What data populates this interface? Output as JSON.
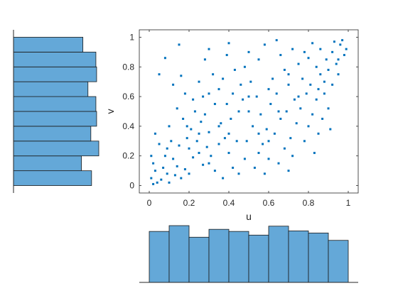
{
  "chart_data": [
    {
      "type": "scatter",
      "id": "main",
      "xlabel": "u",
      "ylabel": "v",
      "xlim": [
        -0.05,
        1.05
      ],
      "ylim": [
        -0.05,
        1.05
      ],
      "xticks": [
        0,
        0.2,
        0.4,
        0.6,
        0.8,
        1
      ],
      "yticks": [
        0,
        0.2,
        0.4,
        0.6,
        0.8,
        1
      ],
      "xtick_labels": [
        "0",
        "0.2",
        "0.4",
        "0.6",
        "0.8",
        "1"
      ],
      "ytick_labels": [
        "0",
        "0.2",
        "0.4",
        "0.6",
        "0.8",
        "1"
      ],
      "grid": false,
      "marker_color": "#0072BD",
      "points": [
        [
          0.06,
          0.04
        ],
        [
          0.02,
          0.01
        ],
        [
          0.01,
          0.05
        ],
        [
          0.09,
          0.08
        ],
        [
          0.1,
          0.02
        ],
        [
          0.03,
          0.1
        ],
        [
          0.04,
          0.02
        ],
        [
          0.13,
          0.07
        ],
        [
          0.07,
          0.12
        ],
        [
          0.14,
          0.13
        ],
        [
          0.02,
          0.15
        ],
        [
          0.16,
          0.05
        ],
        [
          0.12,
          0.18
        ],
        [
          0.18,
          0.11
        ],
        [
          0.2,
          0.08
        ],
        [
          0.08,
          0.2
        ],
        [
          0.22,
          0.19
        ],
        [
          0.05,
          0.28
        ],
        [
          0.11,
          0.3
        ],
        [
          0.03,
          0.35
        ],
        [
          0.15,
          0.27
        ],
        [
          0.19,
          0.32
        ],
        [
          0.25,
          0.22
        ],
        [
          0.27,
          0.14
        ],
        [
          0.24,
          0.3
        ],
        [
          0.29,
          0.26
        ],
        [
          0.1,
          0.4
        ],
        [
          0.17,
          0.45
        ],
        [
          0.21,
          0.38
        ],
        [
          0.26,
          0.43
        ],
        [
          0.14,
          0.52
        ],
        [
          0.23,
          0.5
        ],
        [
          0.3,
          0.36
        ],
        [
          0.31,
          0.2
        ],
        [
          0.33,
          0.1
        ],
        [
          0.35,
          0.28
        ],
        [
          0.28,
          0.48
        ],
        [
          0.22,
          0.58
        ],
        [
          0.18,
          0.62
        ],
        [
          0.12,
          0.68
        ],
        [
          0.16,
          0.74
        ],
        [
          0.15,
          0.95
        ],
        [
          0.08,
          0.86
        ],
        [
          0.05,
          0.75
        ],
        [
          0.25,
          0.7
        ],
        [
          0.3,
          0.62
        ],
        [
          0.33,
          0.55
        ],
        [
          0.36,
          0.42
        ],
        [
          0.38,
          0.32
        ],
        [
          0.4,
          0.22
        ],
        [
          0.42,
          0.12
        ],
        [
          0.37,
          0.05
        ],
        [
          0.45,
          0.08
        ],
        [
          0.48,
          0.18
        ],
        [
          0.44,
          0.3
        ],
        [
          0.41,
          0.45
        ],
        [
          0.39,
          0.55
        ],
        [
          0.35,
          0.65
        ],
        [
          0.32,
          0.75
        ],
        [
          0.28,
          0.85
        ],
        [
          0.3,
          0.92
        ],
        [
          0.4,
          0.96
        ],
        [
          0.39,
          0.88
        ],
        [
          0.43,
          0.78
        ],
        [
          0.46,
          0.68
        ],
        [
          0.47,
          0.58
        ],
        [
          0.5,
          0.5
        ],
        [
          0.52,
          0.4
        ],
        [
          0.49,
          0.3
        ],
        [
          0.55,
          0.22
        ],
        [
          0.53,
          0.12
        ],
        [
          0.58,
          0.08
        ],
        [
          0.6,
          0.18
        ],
        [
          0.57,
          0.28
        ],
        [
          0.59,
          0.38
        ],
        [
          0.56,
          0.48
        ],
        [
          0.54,
          0.6
        ],
        [
          0.51,
          0.7
        ],
        [
          0.48,
          0.8
        ],
        [
          0.5,
          0.9
        ],
        [
          0.55,
          0.85
        ],
        [
          0.58,
          0.95
        ],
        [
          0.62,
          0.72
        ],
        [
          0.64,
          0.62
        ],
        [
          0.61,
          0.55
        ],
        [
          0.66,
          0.45
        ],
        [
          0.63,
          0.35
        ],
        [
          0.68,
          0.25
        ],
        [
          0.65,
          0.15
        ],
        [
          0.7,
          0.1
        ],
        [
          0.72,
          0.2
        ],
        [
          0.71,
          0.32
        ],
        [
          0.74,
          0.42
        ],
        [
          0.69,
          0.5
        ],
        [
          0.73,
          0.58
        ],
        [
          0.7,
          0.68
        ],
        [
          0.68,
          0.78
        ],
        [
          0.66,
          0.88
        ],
        [
          0.64,
          0.98
        ],
        [
          0.72,
          0.92
        ],
        [
          0.75,
          0.82
        ],
        [
          0.77,
          0.72
        ],
        [
          0.79,
          0.62
        ],
        [
          0.76,
          0.52
        ],
        [
          0.8,
          0.4
        ],
        [
          0.78,
          0.3
        ],
        [
          0.83,
          0.22
        ],
        [
          0.85,
          0.35
        ],
        [
          0.82,
          0.48
        ],
        [
          0.84,
          0.58
        ],
        [
          0.81,
          0.68
        ],
        [
          0.86,
          0.75
        ],
        [
          0.88,
          0.62
        ],
        [
          0.9,
          0.52
        ],
        [
          0.87,
          0.45
        ],
        [
          0.91,
          0.38
        ],
        [
          0.89,
          0.85
        ],
        [
          0.92,
          0.9
        ],
        [
          0.94,
          0.82
        ],
        [
          0.96,
          0.95
        ],
        [
          0.98,
          0.88
        ],
        [
          0.95,
          0.75
        ],
        [
          0.97,
          0.98
        ],
        [
          0.99,
          0.92
        ],
        [
          0.93,
          0.97
        ],
        [
          0.9,
          0.78
        ],
        [
          0.86,
          0.92
        ],
        [
          0.84,
          0.8
        ],
        [
          0.8,
          0.86
        ],
        [
          0.78,
          0.9
        ],
        [
          0.82,
          0.96
        ],
        [
          0.88,
          0.7
        ],
        [
          0.92,
          0.68
        ],
        [
          0.95,
          0.85
        ],
        [
          0.6,
          0.3
        ],
        [
          0.45,
          0.5
        ],
        [
          0.35,
          0.4
        ],
        [
          0.25,
          0.35
        ],
        [
          0.2,
          0.25
        ],
        [
          0.3,
          0.15
        ],
        [
          0.4,
          0.35
        ],
        [
          0.5,
          0.6
        ],
        [
          0.6,
          0.65
        ],
        [
          0.7,
          0.75
        ],
        [
          0.55,
          0.35
        ],
        [
          0.65,
          0.5
        ],
        [
          0.75,
          0.6
        ],
        [
          0.85,
          0.65
        ],
        [
          0.42,
          0.62
        ],
        [
          0.37,
          0.72
        ],
        [
          0.27,
          0.6
        ],
        [
          0.19,
          0.4
        ],
        [
          0.09,
          0.25
        ],
        [
          0.01,
          0.2
        ]
      ]
    },
    {
      "type": "bar",
      "id": "hist-u",
      "orientation": "vertical",
      "xlim": [
        -0.05,
        1.05
      ],
      "bin_edges": [
        0,
        0.1,
        0.2,
        0.3,
        0.4,
        0.5,
        0.6,
        0.7,
        0.8,
        0.9,
        1
      ],
      "values": [
        97,
        108,
        86,
        101,
        97,
        90,
        107,
        98,
        94,
        80
      ],
      "color": "#64A8D8"
    },
    {
      "type": "bar",
      "id": "hist-v",
      "orientation": "horizontal",
      "ylim": [
        -0.05,
        1.05
      ],
      "bin_edges": [
        0,
        0.1,
        0.2,
        0.3,
        0.4,
        0.5,
        0.6,
        0.7,
        0.8,
        0.9,
        1
      ],
      "values": [
        108,
        94,
        118,
        107,
        115,
        114,
        103,
        115,
        114,
        96
      ],
      "color": "#64A8D8"
    }
  ]
}
